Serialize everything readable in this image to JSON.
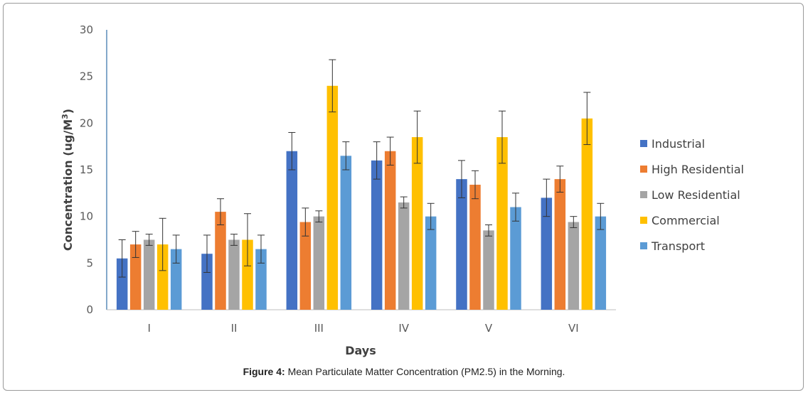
{
  "chart_data": {
    "type": "bar",
    "xlabel": "Days",
    "ylabel": "Concentration (ug/M",
    "ylabel_superscript": "3",
    "ylabel_suffix": ")",
    "ylim": [
      0,
      30
    ],
    "yticks": [
      0,
      5,
      10,
      15,
      20,
      25,
      30
    ],
    "grid": false,
    "legend_position": "right",
    "error_bars": true,
    "categories": [
      "I",
      "II",
      "III",
      "IV",
      "V",
      "VI"
    ],
    "series": [
      {
        "name": "Industrial",
        "color": "#4472C4",
        "values": [
          5.5,
          6.0,
          17.0,
          16.0,
          14.0,
          12.0
        ],
        "errors": [
          2.0,
          2.0,
          2.0,
          2.0,
          2.0,
          2.0
        ]
      },
      {
        "name": "High Residential",
        "color": "#ED7D31",
        "values": [
          7.0,
          10.5,
          9.4,
          17.0,
          13.4,
          14.0
        ],
        "errors": [
          1.4,
          1.4,
          1.5,
          1.5,
          1.5,
          1.4
        ]
      },
      {
        "name": "Low Residential",
        "color": "#A5A5A5",
        "values": [
          7.5,
          7.5,
          10.0,
          11.5,
          8.5,
          9.4
        ],
        "errors": [
          0.6,
          0.6,
          0.6,
          0.6,
          0.6,
          0.6
        ]
      },
      {
        "name": "Commercial",
        "color": "#FFC000",
        "values": [
          7.0,
          7.5,
          24.0,
          18.5,
          18.5,
          20.5
        ],
        "errors": [
          2.8,
          2.8,
          2.8,
          2.8,
          2.8,
          2.8
        ]
      },
      {
        "name": "Transport",
        "color": "#5B9BD5",
        "values": [
          6.5,
          6.5,
          16.5,
          10.0,
          11.0,
          10.0
        ],
        "errors": [
          1.5,
          1.5,
          1.5,
          1.4,
          1.5,
          1.4
        ]
      }
    ]
  },
  "caption": {
    "label": "Figure 4:",
    "text": " Mean Particulate Matter Concentration (PM2.5) in the Morning."
  }
}
